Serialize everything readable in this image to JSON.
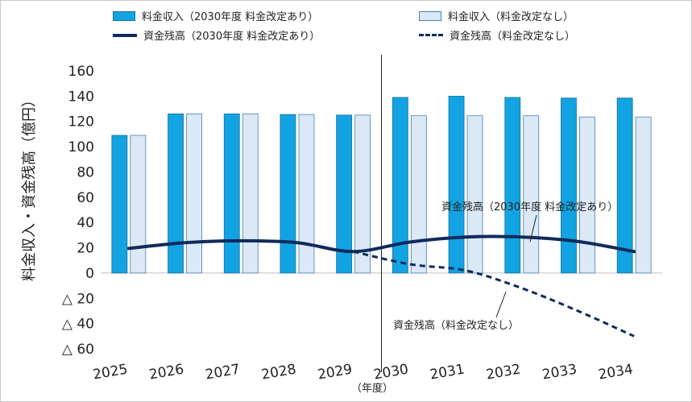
{
  "chart_data": {
    "type": "bar+line",
    "xlabel": "（年度）",
    "ylabel": "料金収入・資金残高（億円）",
    "ylim": [
      -60,
      160
    ],
    "yticks": [
      160,
      140,
      120,
      100,
      80,
      60,
      40,
      20,
      0,
      -20,
      -40,
      -60
    ],
    "ytick_labels": [
      "160",
      "140",
      "120",
      "100",
      "80",
      "60",
      "40",
      "20",
      "0",
      "△ 20",
      "△ 40",
      "△ 60"
    ],
    "categories": [
      "2025",
      "2026",
      "2027",
      "2028",
      "2029",
      "2030",
      "2031",
      "2032",
      "2033",
      "2034"
    ],
    "divider_after": "2029",
    "series": [
      {
        "name": "料金収入（2030年度 料金改定あり）",
        "kind": "bar",
        "color": "#12a3e2",
        "values": [
          109,
          126,
          126,
          125.5,
          125,
          139,
          140,
          139,
          138.5,
          138.5
        ]
      },
      {
        "name": "料金収入（料金改定なし）",
        "kind": "bar",
        "color": "#dbe8f5",
        "values": [
          109,
          126,
          126,
          125.5,
          125,
          124.5,
          124.5,
          124.5,
          123.5,
          123.5
        ]
      },
      {
        "name": "資金残高（2030年度 料金改定あり）",
        "kind": "line",
        "color": "#102a5c",
        "values": [
          19.5,
          24,
          25.5,
          24,
          17,
          24.5,
          28.5,
          28.5,
          25,
          17
        ]
      },
      {
        "name": "資金残高（料金改定なし）",
        "kind": "line-dashed",
        "color": "#102a5c",
        "values": [
          null,
          null,
          null,
          null,
          17,
          7,
          2,
          -12,
          -30,
          -50
        ]
      }
    ],
    "annotations": [
      {
        "text": "資金残高（2030年度 料金改定あり）",
        "series": 2
      },
      {
        "text": "資金残高（料金改定なし）",
        "series": 3
      }
    ]
  }
}
